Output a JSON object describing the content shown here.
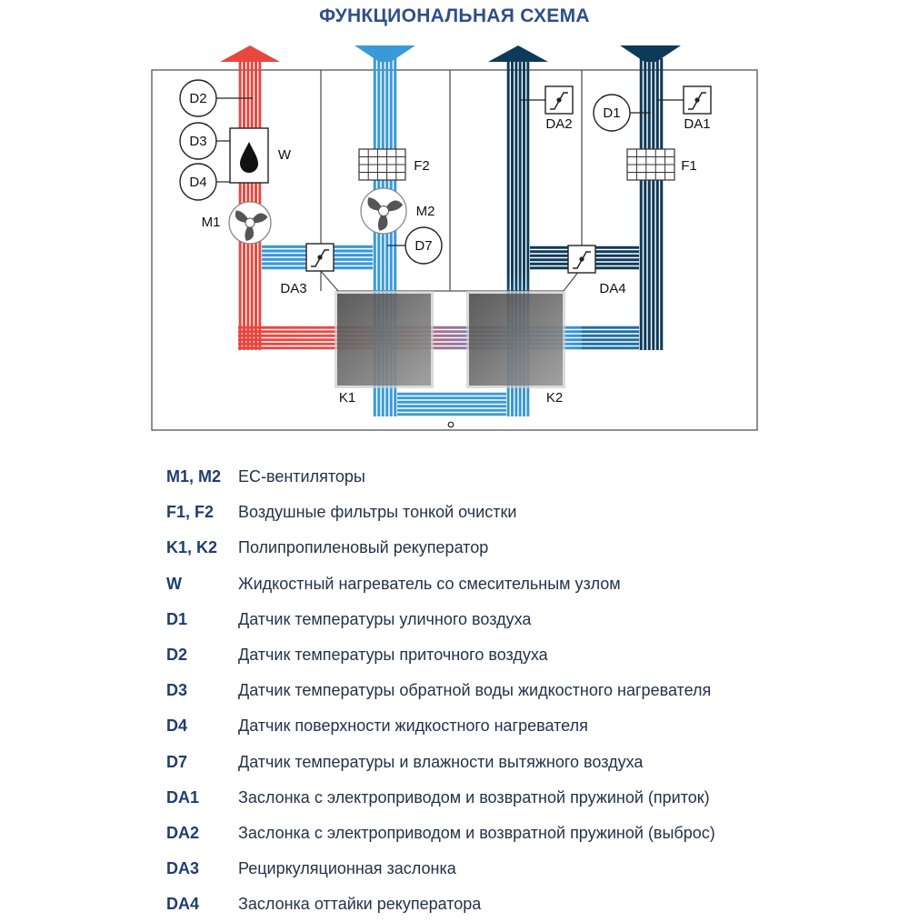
{
  "title": "ФУНКЦИОНАЛЬНАЯ СХЕМА",
  "diagram": {
    "labels": {
      "D1": "D1",
      "D2": "D2",
      "D3": "D3",
      "D4": "D4",
      "D7": "D7",
      "W": "W",
      "M1": "M1",
      "M2": "M2",
      "F1": "F1",
      "F2": "F2",
      "DA1": "DA1",
      "DA2": "DA2",
      "DA3": "DA3",
      "DA4": "DA4",
      "K1": "K1",
      "K2": "K2"
    },
    "colors": {
      "supply_hot": "#e8473f",
      "extract": "#3a9ad9",
      "outdoor": "#0e3a5a",
      "frame": "#444444"
    }
  },
  "legend": [
    {
      "key": "M1, M2",
      "desc": "ЕС-вентиляторы"
    },
    {
      "key": "F1, F2",
      "desc": "Воздушные фильтры тонкой очистки"
    },
    {
      "key": "K1, K2",
      "desc": "Полипропиленовый рекуператор"
    },
    {
      "key": "W",
      "desc": "Жидкостный нагреватель со смесительным узлом"
    },
    {
      "key": "D1",
      "desc": "Датчик температуры уличного воздуха"
    },
    {
      "key": "D2",
      "desc": "Датчик температуры приточного воздуха"
    },
    {
      "key": "D3",
      "desc": "Датчик температуры обратной воды жидкостного нагревателя"
    },
    {
      "key": "D4",
      "desc": "Датчик поверхности жидкостного нагревателя"
    },
    {
      "key": "D7",
      "desc": "Датчик температуры и влажности вытяжного воздуха"
    },
    {
      "key": "DA1",
      "desc": "Заслонка с электроприводом и возвратной пружиной (приток)"
    },
    {
      "key": "DA2",
      "desc": "Заслонка с электроприводом и возвратной пружиной (выброс)"
    },
    {
      "key": "DA3",
      "desc": "Рециркуляционная заслонка"
    },
    {
      "key": "DA4",
      "desc": "Заслонка оттайки рекуператора"
    }
  ]
}
